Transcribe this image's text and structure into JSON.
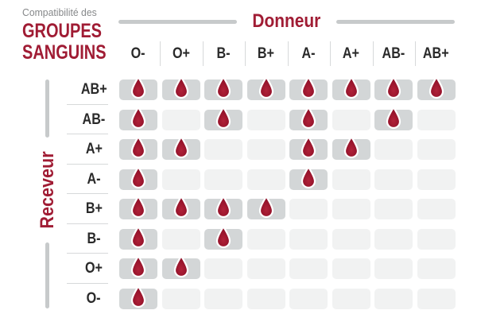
{
  "title": {
    "kicker": "Compatibilité des",
    "line1": "GROUPES",
    "line2": "SANGUINS"
  },
  "axis": {
    "donor": "Donneur",
    "receiver": "Receveur"
  },
  "chart_data": {
    "type": "heatmap",
    "title": "Compatibilité des GROUPES SANGUINS",
    "x_axis_label": "Donneur",
    "y_axis_label": "Receveur",
    "columns": [
      "O-",
      "O+",
      "B-",
      "B+",
      "A-",
      "A+",
      "AB-",
      "AB+"
    ],
    "rows": [
      "AB+",
      "AB-",
      "A+",
      "A-",
      "B+",
      "B-",
      "O+",
      "O-"
    ],
    "matrix": [
      [
        1,
        1,
        1,
        1,
        1,
        1,
        1,
        1
      ],
      [
        1,
        0,
        1,
        0,
        1,
        0,
        1,
        0
      ],
      [
        1,
        1,
        0,
        0,
        1,
        1,
        0,
        0
      ],
      [
        1,
        0,
        0,
        0,
        1,
        0,
        0,
        0
      ],
      [
        1,
        1,
        1,
        1,
        0,
        0,
        0,
        0
      ],
      [
        1,
        0,
        1,
        0,
        0,
        0,
        0,
        0
      ],
      [
        1,
        1,
        0,
        0,
        0,
        0,
        0,
        0
      ],
      [
        1,
        0,
        0,
        0,
        0,
        0,
        0,
        0
      ]
    ],
    "compatible_marker": "blood-drop-icon",
    "legend_position": "none",
    "grid": "rounded-cells"
  },
  "colors": {
    "accent_red": "#a01c34",
    "drop_fill_light": "#b12239",
    "drop_fill_dark": "#8c0e26",
    "drop_outline": "#ffffff",
    "cell_filled": "#d3d6d7",
    "cell_empty": "#f1f2f2",
    "bracket_gray": "#c7cacb",
    "separator_gray": "#d7d9da",
    "text_dark": "#2a2a2a",
    "text_gray": "#86888a",
    "background": "#ffffff"
  }
}
